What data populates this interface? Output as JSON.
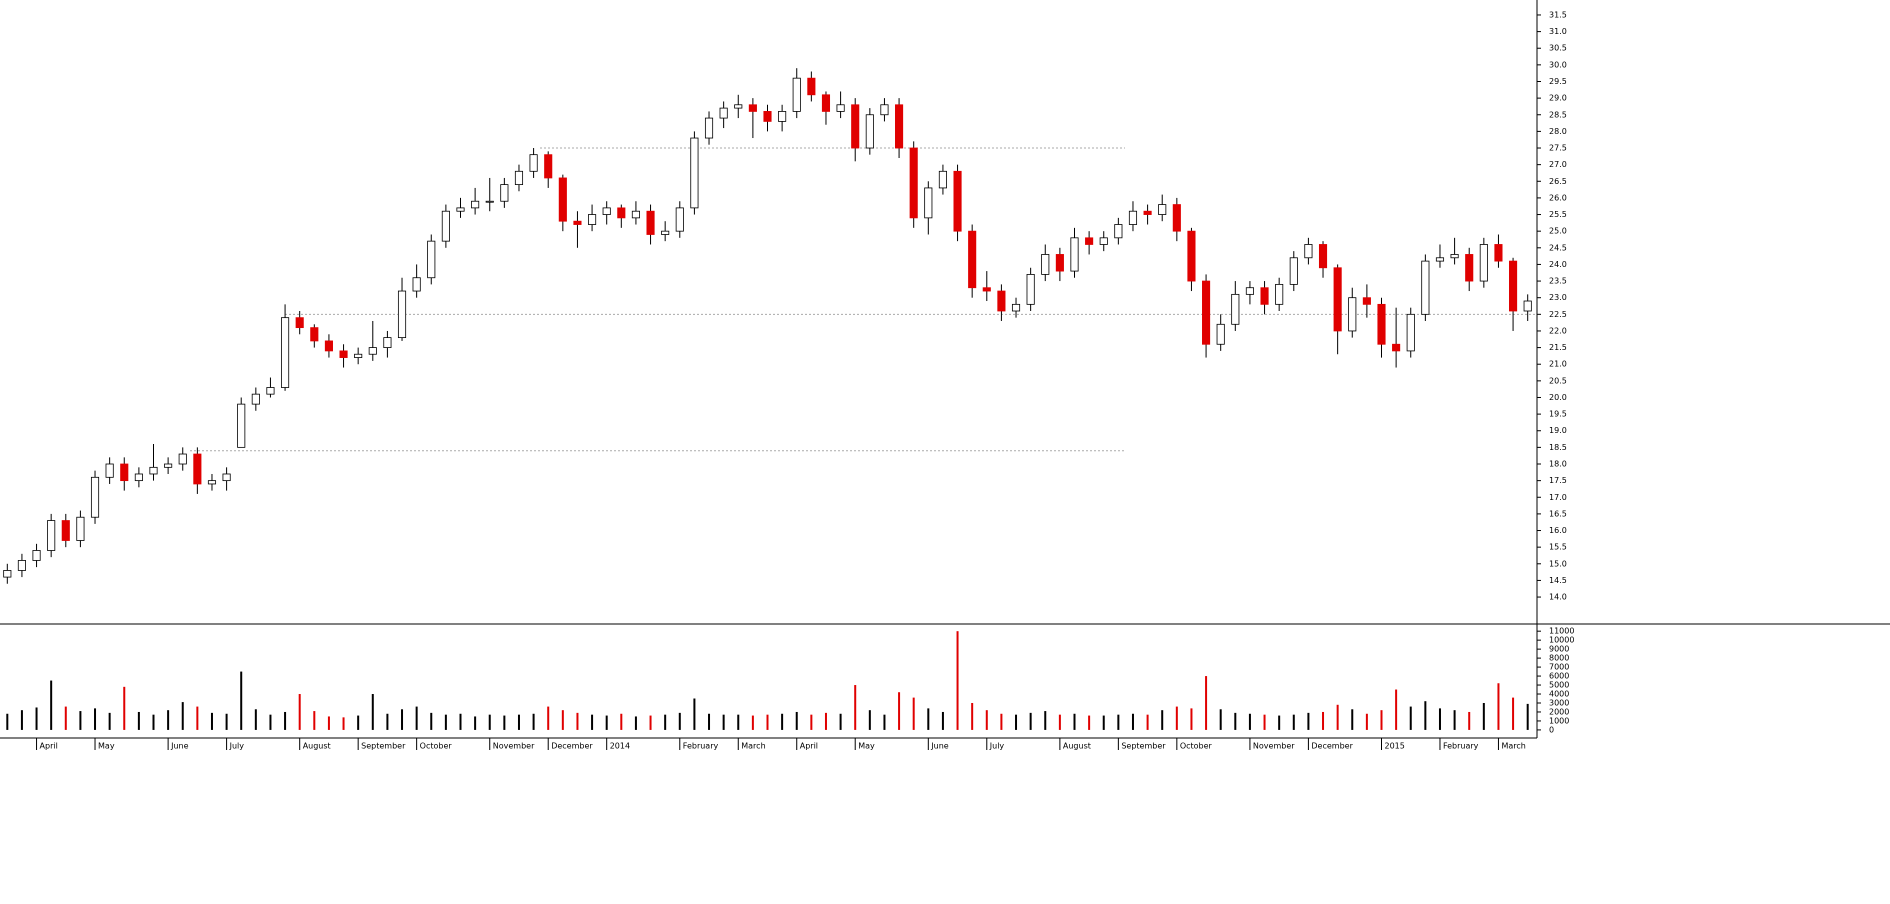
{
  "chart_data": {
    "type": "candlestick",
    "categories": [
      null,
      null,
      "April",
      null,
      null,
      null,
      "May",
      null,
      null,
      null,
      null,
      "June",
      null,
      null,
      null,
      "July",
      null,
      null,
      null,
      null,
      "August",
      null,
      null,
      null,
      "September",
      null,
      null,
      null,
      "October",
      null,
      null,
      null,
      null,
      "November",
      null,
      null,
      null,
      "December",
      null,
      null,
      null,
      "2014",
      null,
      null,
      null,
      null,
      "February",
      null,
      null,
      null,
      "March",
      null,
      null,
      null,
      "April",
      null,
      null,
      null,
      "May",
      null,
      null,
      null,
      null,
      "June",
      null,
      null,
      null,
      "July",
      null,
      null,
      null,
      null,
      "August",
      null,
      null,
      null,
      "September",
      null,
      null,
      null,
      "October",
      null,
      null,
      null,
      null,
      "November",
      null,
      null,
      null,
      "December",
      null,
      null,
      null,
      null,
      "2015",
      null,
      null,
      null,
      "February",
      null,
      null,
      null,
      "March",
      null,
      null
    ],
    "open": [
      14.6,
      14.8,
      15.1,
      15.4,
      16.3,
      15.7,
      16.4,
      17.6,
      18.0,
      17.5,
      17.7,
      17.9,
      18.0,
      18.3,
      17.4,
      17.5,
      18.5,
      19.8,
      20.1,
      20.3,
      22.4,
      22.1,
      21.7,
      21.4,
      21.2,
      21.3,
      21.5,
      21.8,
      23.2,
      23.6,
      24.7,
      25.6,
      25.7,
      25.9,
      25.9,
      26.4,
      26.8,
      27.3,
      26.6,
      25.3,
      25.2,
      25.5,
      25.7,
      25.4,
      25.6,
      24.9,
      25.0,
      25.7,
      27.8,
      28.4,
      28.7,
      28.8,
      28.6,
      28.3,
      28.6,
      29.6,
      29.1,
      28.6,
      28.8,
      27.5,
      28.5,
      28.8,
      27.5,
      25.4,
      26.3,
      26.8,
      25.0,
      23.3,
      23.2,
      22.6,
      22.8,
      23.7,
      24.3,
      23.8,
      24.8,
      24.6,
      24.8,
      25.2,
      25.6,
      25.5,
      25.8,
      25.0,
      23.5,
      21.6,
      22.2,
      23.1,
      23.3,
      22.8,
      23.4,
      24.2,
      24.6,
      23.9,
      22.0,
      23.0,
      22.8,
      21.6,
      21.4,
      22.5,
      24.1,
      24.2,
      24.3,
      23.5,
      24.6,
      24.1,
      22.6
    ],
    "high": [
      15.0,
      15.3,
      15.6,
      16.5,
      16.5,
      16.6,
      17.8,
      18.2,
      18.2,
      17.9,
      18.6,
      18.2,
      18.5,
      18.5,
      17.7,
      17.9,
      20.0,
      20.3,
      20.6,
      22.8,
      22.6,
      22.2,
      21.9,
      21.6,
      21.5,
      22.3,
      22.0,
      23.6,
      24.0,
      24.9,
      25.8,
      26.0,
      26.3,
      26.6,
      26.6,
      27.0,
      27.5,
      27.4,
      26.7,
      25.6,
      25.8,
      25.9,
      25.8,
      25.9,
      25.8,
      25.3,
      25.9,
      28.0,
      28.6,
      28.9,
      29.1,
      29.0,
      28.8,
      28.8,
      29.9,
      29.8,
      29.2,
      29.2,
      29.0,
      28.7,
      29.0,
      29.0,
      27.7,
      26.5,
      27.0,
      27.0,
      25.2,
      23.8,
      23.4,
      23.0,
      23.9,
      24.6,
      24.5,
      25.1,
      25.0,
      25.0,
      25.4,
      25.9,
      25.8,
      26.1,
      26.0,
      25.1,
      23.7,
      22.5,
      23.5,
      23.5,
      23.5,
      23.6,
      24.4,
      24.8,
      24.7,
      24.0,
      23.3,
      23.4,
      23.0,
      22.7,
      22.7,
      24.3,
      24.6,
      24.8,
      24.5,
      24.8,
      24.9,
      24.2,
      23.1
    ],
    "low": [
      14.4,
      14.6,
      14.9,
      15.2,
      15.5,
      15.5,
      16.2,
      17.4,
      17.2,
      17.3,
      17.5,
      17.7,
      17.8,
      17.1,
      17.2,
      17.2,
      18.5,
      19.6,
      20.0,
      20.2,
      21.9,
      21.5,
      21.2,
      20.9,
      21.0,
      21.1,
      21.2,
      21.7,
      23.0,
      23.4,
      24.5,
      25.4,
      25.5,
      25.6,
      25.7,
      26.2,
      26.6,
      26.3,
      25.0,
      24.5,
      25.0,
      25.2,
      25.1,
      25.2,
      24.6,
      24.7,
      24.8,
      25.5,
      27.6,
      28.1,
      28.4,
      27.8,
      28.0,
      28.0,
      28.4,
      28.9,
      28.2,
      28.4,
      27.1,
      27.3,
      28.3,
      27.2,
      25.1,
      24.9,
      26.1,
      24.7,
      23.0,
      22.9,
      22.3,
      22.4,
      22.6,
      23.5,
      23.5,
      23.6,
      24.3,
      24.4,
      24.6,
      25.0,
      25.2,
      25.3,
      24.7,
      23.2,
      21.2,
      21.4,
      22.0,
      22.8,
      22.5,
      22.6,
      23.2,
      24.0,
      23.6,
      21.3,
      21.8,
      22.4,
      21.2,
      20.9,
      21.2,
      22.3,
      23.9,
      24.0,
      23.2,
      23.3,
      23.9,
      22.0,
      22.3
    ],
    "close": [
      14.8,
      15.1,
      15.4,
      16.3,
      15.7,
      16.4,
      17.6,
      18.0,
      17.5,
      17.7,
      17.9,
      18.0,
      18.3,
      17.4,
      17.5,
      17.7,
      19.8,
      20.1,
      20.3,
      22.4,
      22.1,
      21.7,
      21.4,
      21.2,
      21.3,
      21.5,
      21.8,
      23.2,
      23.6,
      24.7,
      25.6,
      25.7,
      25.9,
      25.9,
      26.4,
      26.8,
      27.3,
      26.6,
      25.3,
      25.2,
      25.5,
      25.7,
      25.4,
      25.6,
      24.9,
      25.0,
      25.7,
      27.8,
      28.4,
      28.7,
      28.8,
      28.6,
      28.3,
      28.6,
      29.6,
      29.1,
      28.6,
      28.8,
      27.5,
      28.5,
      28.8,
      27.5,
      25.4,
      26.3,
      26.8,
      25.0,
      23.3,
      23.2,
      22.6,
      22.8,
      23.7,
      24.3,
      23.8,
      24.8,
      24.6,
      24.8,
      25.2,
      25.6,
      25.5,
      25.8,
      25.0,
      23.5,
      21.6,
      22.2,
      23.1,
      23.3,
      22.8,
      23.4,
      24.2,
      24.6,
      23.9,
      22.0,
      23.0,
      22.8,
      21.6,
      21.4,
      22.5,
      24.1,
      24.2,
      24.3,
      23.5,
      24.6,
      24.1,
      22.6,
      22.9
    ],
    "volume": [
      1800,
      2200,
      2500,
      5500,
      2600,
      2100,
      2400,
      1900,
      4800,
      2000,
      1700,
      2200,
      3100,
      2600,
      1900,
      1800,
      6500,
      2300,
      1700,
      2000,
      4000,
      2100,
      1500,
      1400,
      1600,
      4000,
      1800,
      2300,
      2600,
      1900,
      1700,
      1800,
      1500,
      1700,
      1600,
      1700,
      1800,
      2600,
      2200,
      1900,
      1700,
      1600,
      1800,
      1500,
      1600,
      1700,
      1900,
      3500,
      1800,
      1700,
      1700,
      1600,
      1700,
      1800,
      2000,
      1700,
      1900,
      1800,
      5000,
      2200,
      1700,
      4200,
      3600,
      2400,
      2000,
      11000,
      3000,
      2200,
      1800,
      1700,
      1900,
      2100,
      1700,
      1800,
      1600,
      1600,
      1700,
      1800,
      1700,
      2200,
      2600,
      2400,
      6000,
      2300,
      1900,
      1800,
      1700,
      1600,
      1700,
      1900,
      2000,
      2800,
      2300,
      1800,
      2200,
      4500,
      2600,
      3200,
      2400,
      2200,
      2000,
      3000,
      5200,
      3600,
      2900
    ],
    "ylim": [
      13.25,
      31.95
    ],
    "yticks": [
      {
        "value": 14.0,
        "label": "14.0"
      },
      {
        "value": 14.5,
        "label": "14.5"
      },
      {
        "value": 15.0,
        "label": "15.0"
      },
      {
        "value": 15.5,
        "label": "15.5"
      },
      {
        "value": 16.0,
        "label": "16.0"
      },
      {
        "value": 16.5,
        "label": "16.5"
      },
      {
        "value": 17.0,
        "label": "17.0"
      },
      {
        "value": 17.5,
        "label": "17.5"
      },
      {
        "value": 18.0,
        "label": "18.0"
      },
      {
        "value": 18.5,
        "label": "18.5"
      },
      {
        "value": 19.0,
        "label": "19.0"
      },
      {
        "value": 19.5,
        "label": "19.5"
      },
      {
        "value": 20.0,
        "label": "20.0"
      },
      {
        "value": 20.5,
        "label": "20.5"
      },
      {
        "value": 21.0,
        "label": "21.0"
      },
      {
        "value": 21.5,
        "label": "21.5"
      },
      {
        "value": 22.0,
        "label": "22.0"
      },
      {
        "value": 22.5,
        "label": "22.5"
      },
      {
        "value": 23.0,
        "label": "23.0"
      },
      {
        "value": 23.5,
        "label": "23.5"
      },
      {
        "value": 24.0,
        "label": "24.0"
      },
      {
        "value": 24.5,
        "label": "24.5"
      },
      {
        "value": 25.0,
        "label": "25.0"
      },
      {
        "value": 25.5,
        "label": "25.5"
      },
      {
        "value": 26.0,
        "label": "26.0"
      },
      {
        "value": 26.5,
        "label": "26.5"
      },
      {
        "value": 27.0,
        "label": "27.0"
      },
      {
        "value": 27.5,
        "label": "27.5"
      },
      {
        "value": 28.0,
        "label": "28.0"
      },
      {
        "value": 28.5,
        "label": "28.5"
      },
      {
        "value": 29.0,
        "label": "29.0"
      },
      {
        "value": 29.5,
        "label": "29.5"
      },
      {
        "value": 30.0,
        "label": "30.0"
      },
      {
        "value": 30.5,
        "label": "30.5"
      },
      {
        "value": 31.0,
        "label": "31.0"
      },
      {
        "value": 31.5,
        "label": "31.5"
      }
    ],
    "volume_ylim": [
      -900,
      11800
    ],
    "volume_yticks": [
      0,
      1000,
      2000,
      3000,
      4000,
      5000,
      6000,
      7000,
      8000,
      9000,
      10000,
      11000
    ],
    "reference_lines": [
      27.5,
      22.5,
      18.4
    ],
    "up_color": "#ffffff",
    "down_color": "#e00000",
    "outline_color": "#000000"
  }
}
